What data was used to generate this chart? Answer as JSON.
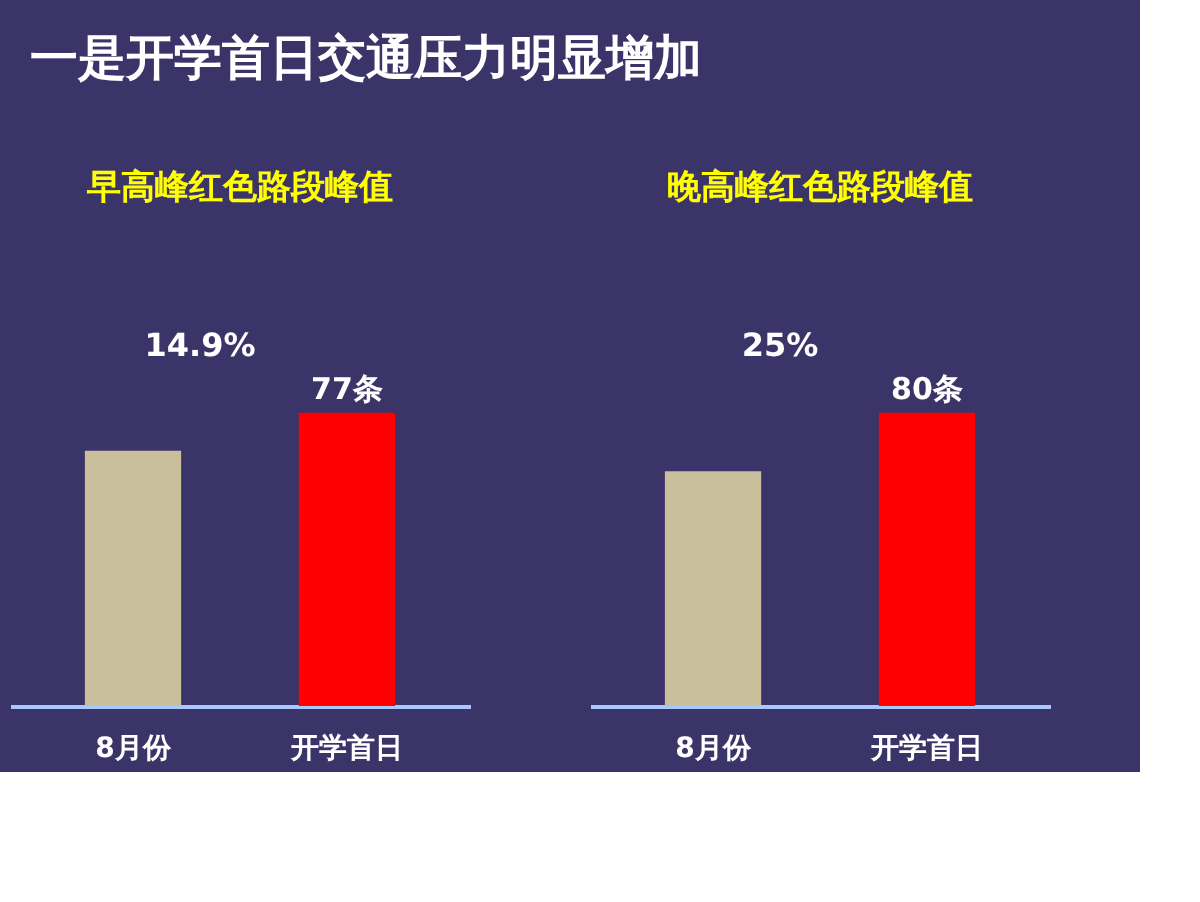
{
  "chart_data": [
    {
      "type": "other",
      "title": "一是开学首日交通压力明显增加"
    },
    {
      "type": "bar",
      "title": "早高峰红色路段峰值",
      "categories": [
        "8月份",
        "开学首日"
      ],
      "values": [
        67,
        77
      ],
      "colors": [
        "#c9bf9a",
        "#ff0000"
      ],
      "value_labels": [
        null,
        "77条"
      ],
      "annotations": [
        "14.9%"
      ]
    },
    {
      "type": "bar",
      "title": "晚高峰红色路段峰值",
      "categories": [
        "8月份",
        "开学首日"
      ],
      "values": [
        64,
        80
      ],
      "colors": [
        "#c9bf9a",
        "#ff0000"
      ],
      "value_labels": [
        null,
        "80条"
      ],
      "annotations": [
        "25%"
      ]
    }
  ]
}
